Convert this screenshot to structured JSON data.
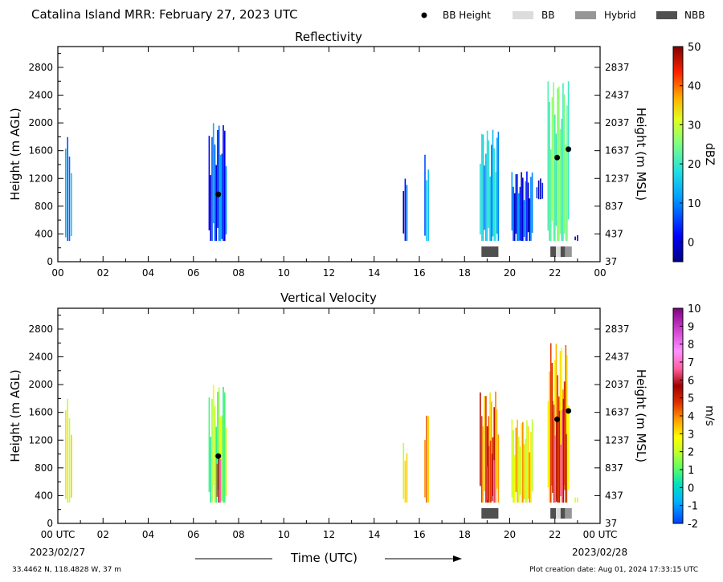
{
  "page": {
    "title": "Catalina Island MRR:  February 27, 2023 UTC",
    "footer_location": "33.4462 N, 118.4828 W, 37 m",
    "footer_created": "Plot creation date: Aug 01, 2024 17:33:15 UTC",
    "time_axis_label": "Time (UTC)",
    "start_date": "2023/02/27",
    "end_date": "2023/02/28"
  },
  "legend": {
    "items": [
      {
        "label": "BB Height",
        "marker": "dot",
        "color": "#000000"
      },
      {
        "label": "BB",
        "marker": "box",
        "color": "#dcdcdc"
      },
      {
        "label": "Hybrid",
        "marker": "box",
        "color": "#969696"
      },
      {
        "label": "NBB",
        "marker": "box",
        "color": "#505050"
      }
    ]
  },
  "chart_data": [
    {
      "type": "heatmap",
      "title": "Reflectivity",
      "ylabel": "Height (m AGL)",
      "ylabel_right": "Height (m MSL)",
      "x_ticks": [
        "00",
        "02",
        "04",
        "06",
        "08",
        "10",
        "12",
        "14",
        "16",
        "18",
        "20",
        "22",
        "00"
      ],
      "y_ticks": [
        0,
        400,
        800,
        1200,
        1600,
        2000,
        2400,
        2800
      ],
      "y_ticks_right": [
        37,
        437,
        837,
        1237,
        1637,
        2037,
        2437,
        2837
      ],
      "xlim_hours": [
        0,
        24
      ],
      "ylim": [
        0,
        3100
      ],
      "colorbar": {
        "label": "dBZ",
        "range": [
          -5,
          50
        ],
        "ticks": [
          0,
          10,
          20,
          30,
          40,
          50
        ]
      },
      "echo_columns": [
        {
          "start_hour": 0.35,
          "end_hour": 0.6,
          "top": 1800,
          "bottom": 300,
          "value": 6
        },
        {
          "start_hour": 6.7,
          "end_hour": 7.45,
          "top": 2000,
          "bottom": 300,
          "value": 2
        },
        {
          "start_hour": 15.3,
          "end_hour": 15.45,
          "top": 1200,
          "bottom": 300,
          "value": 0
        },
        {
          "start_hour": 16.25,
          "end_hour": 16.4,
          "top": 1600,
          "bottom": 300,
          "value": 4
        },
        {
          "start_hour": 18.7,
          "end_hour": 19.5,
          "top": 1900,
          "bottom": 300,
          "value": 8
        },
        {
          "start_hour": 20.1,
          "end_hour": 21.0,
          "top": 1300,
          "bottom": 300,
          "value": 1
        },
        {
          "start_hour": 21.2,
          "end_hour": 21.45,
          "top": 1200,
          "bottom": 900,
          "value": 0
        },
        {
          "start_hour": 21.7,
          "end_hour": 22.6,
          "top": 2600,
          "bottom": 300,
          "value": 16
        },
        {
          "start_hour": 22.9,
          "end_hour": 23.0,
          "top": 400,
          "bottom": 300,
          "value": 0
        }
      ],
      "bb_height_points": [
        {
          "hour": 7.1,
          "height": 970
        },
        {
          "hour": 22.1,
          "height": 1500
        },
        {
          "hour": 22.6,
          "height": 1620
        }
      ],
      "bb_type_segments": [
        {
          "start_hour": 18.75,
          "end_hour": 19.5,
          "type": "NBB"
        },
        {
          "start_hour": 21.8,
          "end_hour": 22.05,
          "type": "NBB"
        },
        {
          "start_hour": 22.05,
          "end_hour": 22.25,
          "type": "BB"
        },
        {
          "start_hour": 22.25,
          "end_hour": 22.45,
          "type": "NBB"
        },
        {
          "start_hour": 22.45,
          "end_hour": 22.75,
          "type": "Hybrid"
        }
      ]
    },
    {
      "type": "heatmap",
      "title": "Vertical Velocity",
      "ylabel": "Height (m AGL)",
      "ylabel_right": "Height (m MSL)",
      "x_ticks": [
        "00 UTC",
        "02",
        "04",
        "06",
        "08",
        "10",
        "12",
        "14",
        "16",
        "18",
        "20",
        "22",
        "00 UTC"
      ],
      "y_ticks": [
        0,
        400,
        800,
        1200,
        1600,
        2000,
        2400,
        2800
      ],
      "y_ticks_right": [
        37,
        437,
        837,
        1237,
        1637,
        2037,
        2437,
        2837
      ],
      "xlim_hours": [
        0,
        24
      ],
      "ylim": [
        0,
        3100
      ],
      "colorbar": {
        "label": "m/s",
        "range": [
          -2,
          10
        ],
        "ticks": [
          -2,
          -1,
          0,
          1,
          2,
          3,
          4,
          5,
          6,
          7,
          8,
          9,
          10
        ]
      },
      "echo_columns": [
        {
          "start_hour": 0.35,
          "end_hour": 0.6,
          "top": 1800,
          "bottom": 300,
          "value": 3
        },
        {
          "start_hour": 6.7,
          "end_hour": 7.45,
          "top": 2000,
          "bottom": 300,
          "value": 1.5
        },
        {
          "start_hour": 7.05,
          "end_hour": 7.2,
          "top": 1000,
          "bottom": 300,
          "value": 6
        },
        {
          "start_hour": 15.3,
          "end_hour": 15.45,
          "top": 1200,
          "bottom": 300,
          "value": 2.5
        },
        {
          "start_hour": 16.25,
          "end_hour": 16.4,
          "top": 1600,
          "bottom": 300,
          "value": 3.5
        },
        {
          "start_hour": 18.7,
          "end_hour": 19.5,
          "top": 1900,
          "bottom": 300,
          "value": 4.5
        },
        {
          "start_hour": 19.0,
          "end_hour": 19.3,
          "top": 1200,
          "bottom": 300,
          "value": 6
        },
        {
          "start_hour": 20.1,
          "end_hour": 21.0,
          "top": 1500,
          "bottom": 300,
          "value": 3
        },
        {
          "start_hour": 21.7,
          "end_hour": 22.6,
          "top": 2600,
          "bottom": 300,
          "value": 4
        },
        {
          "start_hour": 21.9,
          "end_hour": 22.5,
          "top": 1800,
          "bottom": 300,
          "value": 6
        },
        {
          "start_hour": 22.9,
          "end_hour": 23.0,
          "top": 400,
          "bottom": 300,
          "value": 2
        }
      ],
      "bb_height_points": [
        {
          "hour": 7.1,
          "height": 970
        },
        {
          "hour": 22.1,
          "height": 1500
        },
        {
          "hour": 22.6,
          "height": 1620
        }
      ],
      "bb_type_segments": [
        {
          "start_hour": 18.75,
          "end_hour": 19.5,
          "type": "NBB"
        },
        {
          "start_hour": 21.8,
          "end_hour": 22.05,
          "type": "NBB"
        },
        {
          "start_hour": 22.05,
          "end_hour": 22.25,
          "type": "BB"
        },
        {
          "start_hour": 22.25,
          "end_hour": 22.45,
          "type": "NBB"
        },
        {
          "start_hour": 22.45,
          "end_hour": 22.75,
          "type": "Hybrid"
        }
      ]
    }
  ]
}
